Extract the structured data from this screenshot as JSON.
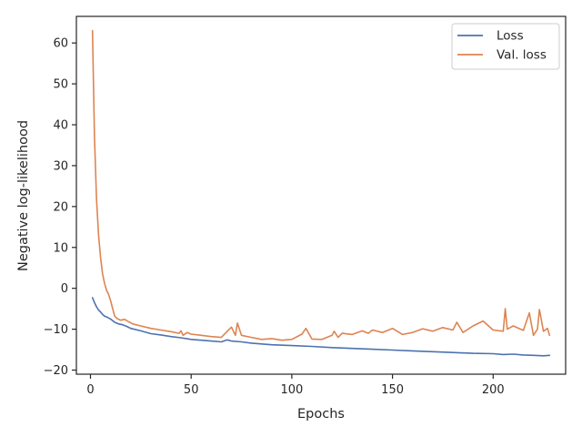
{
  "chart_data": {
    "type": "line",
    "title": "",
    "xlabel": "Epochs",
    "ylabel": "Negative log-likelihood",
    "xlim": [
      -7,
      236
    ],
    "ylim": [
      -21,
      66.5
    ],
    "xticks": [
      0,
      50,
      100,
      150,
      200
    ],
    "yticks": [
      -20,
      -10,
      0,
      10,
      20,
      30,
      40,
      50,
      60
    ],
    "grid": false,
    "legend_position": "top-right",
    "series": [
      {
        "name": "Loss",
        "color": "#4c72b0",
        "x": [
          1,
          2,
          3,
          4,
          5,
          6,
          7,
          8,
          10,
          12,
          14,
          16,
          18,
          20,
          25,
          30,
          35,
          40,
          45,
          50,
          55,
          60,
          65,
          68,
          70,
          75,
          80,
          90,
          100,
          110,
          120,
          130,
          140,
          150,
          160,
          170,
          180,
          190,
          200,
          205,
          210,
          215,
          220,
          225,
          228
        ],
        "y": [
          -2.3,
          -3.5,
          -4.5,
          -5.3,
          -5.8,
          -6.4,
          -6.8,
          -7.0,
          -7.5,
          -8.3,
          -8.7,
          -8.9,
          -9.3,
          -9.8,
          -10.4,
          -11.1,
          -11.4,
          -11.8,
          -12.1,
          -12.5,
          -12.7,
          -12.9,
          -13.1,
          -12.6,
          -12.9,
          -13.1,
          -13.4,
          -13.8,
          -14.0,
          -14.2,
          -14.5,
          -14.7,
          -14.9,
          -15.1,
          -15.3,
          -15.5,
          -15.7,
          -15.9,
          -16.0,
          -16.2,
          -16.1,
          -16.3,
          -16.4,
          -16.5,
          -16.4
        ]
      },
      {
        "name": "Val. loss",
        "color": "#dd8452",
        "x": [
          1,
          2,
          3,
          4,
          5,
          6,
          7,
          8,
          9,
          10,
          11,
          12,
          13,
          14,
          15,
          17,
          19,
          21,
          25,
          30,
          35,
          40,
          44,
          45,
          46,
          48,
          50,
          55,
          60,
          65,
          68,
          70,
          72,
          73,
          75,
          80,
          85,
          90,
          95,
          100,
          105,
          107,
          110,
          115,
          120,
          121,
          123,
          125,
          130,
          135,
          138,
          140,
          145,
          150,
          155,
          160,
          165,
          170,
          175,
          180,
          182,
          185,
          190,
          195,
          200,
          205,
          206,
          207,
          210,
          215,
          218,
          220,
          222,
          223,
          225,
          227,
          228
        ],
        "y": [
          63,
          37,
          22,
          13,
          7.5,
          3.5,
          1.2,
          -0.5,
          -1.5,
          -3.0,
          -5.0,
          -6.8,
          -7.3,
          -7.6,
          -7.8,
          -7.6,
          -8.2,
          -8.7,
          -9.2,
          -9.8,
          -10.2,
          -10.6,
          -11.0,
          -10.4,
          -11.5,
          -10.8,
          -11.2,
          -11.5,
          -11.8,
          -12.0,
          -10.5,
          -9.5,
          -11.5,
          -8.5,
          -11.5,
          -12.0,
          -12.5,
          -12.3,
          -12.7,
          -12.5,
          -11.2,
          -9.8,
          -12.4,
          -12.5,
          -11.5,
          -10.5,
          -12.0,
          -11.0,
          -11.3,
          -10.4,
          -11.0,
          -10.2,
          -10.8,
          -9.8,
          -11.3,
          -10.8,
          -9.9,
          -10.5,
          -9.6,
          -10.2,
          -8.3,
          -10.8,
          -9.2,
          -8.0,
          -10.2,
          -10.5,
          -5.0,
          -10.0,
          -9.2,
          -10.3,
          -6.0,
          -11.5,
          -10.0,
          -5.2,
          -10.5,
          -9.8,
          -11.5
        ]
      }
    ]
  }
}
